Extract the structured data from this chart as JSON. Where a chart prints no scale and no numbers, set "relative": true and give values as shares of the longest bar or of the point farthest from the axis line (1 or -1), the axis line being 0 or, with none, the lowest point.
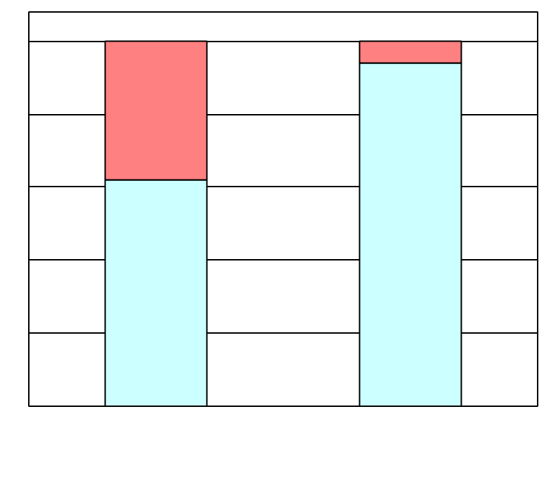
{
  "chart_data": {
    "type": "bar",
    "stacked": true,
    "relative": true,
    "grid": "y",
    "categories": [
      null,
      null
    ],
    "series": [
      {
        "color": "#ccffff",
        "values": [
          0.62,
          0.94
        ]
      },
      {
        "color": "#ff8080",
        "values": [
          0.38,
          0.06
        ]
      }
    ]
  }
}
